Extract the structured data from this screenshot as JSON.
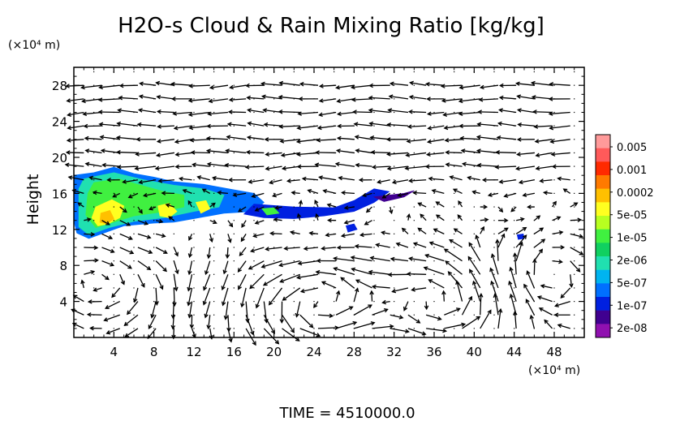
{
  "chart_data": {
    "type": "heatmap",
    "title": "H2O-s Cloud & Rain Mixing Ratio [kg/kg]",
    "ylabel": "Height",
    "y_unit": "(×10⁴ m)",
    "x_unit": "(×10⁴ m)",
    "footer": "TIME = 4510000.0",
    "xlim": [
      0,
      51
    ],
    "ylim": [
      0,
      30
    ],
    "x_ticks": [
      "4",
      "8",
      "12",
      "16",
      "20",
      "24",
      "28",
      "32",
      "36",
      "40",
      "44",
      "48"
    ],
    "y_ticks": [
      "4",
      "8",
      "12",
      "16",
      "20",
      "24",
      "28"
    ],
    "x_tick_values": [
      4,
      8,
      12,
      16,
      20,
      24,
      28,
      32,
      36,
      40,
      44,
      48
    ],
    "y_tick_values": [
      4,
      8,
      12,
      16,
      20,
      24,
      28
    ],
    "colorbar": {
      "labels": [
        "0.005",
        "0.001",
        "0.0002",
        "5e-05",
        "1e-05",
        "2e-06",
        "5e-07",
        "1e-07",
        "2e-08"
      ],
      "colors": [
        "#ff9a9a",
        "#ff5a5a",
        "#ff2a00",
        "#ff7a00",
        "#ffc000",
        "#ffff20",
        "#b8ff20",
        "#40f040",
        "#10d060",
        "#20e0b0",
        "#00b4f0",
        "#0070ff",
        "#0020e0",
        "#400090",
        "#9010b0"
      ]
    },
    "cloud_regions": [
      {
        "level": 3,
        "points": [
          [
            0,
            18.0
          ],
          [
            2,
            18.3
          ],
          [
            4,
            18.9
          ],
          [
            6,
            18.2
          ],
          [
            8,
            17.8
          ],
          [
            10,
            17.3
          ],
          [
            13,
            17.0
          ],
          [
            16,
            16.4
          ],
          [
            18,
            16.0
          ],
          [
            19,
            15.0
          ],
          [
            18,
            14.0
          ],
          [
            15,
            13.8
          ],
          [
            12,
            13.2
          ],
          [
            10,
            12.8
          ],
          [
            8,
            12.7
          ],
          [
            5,
            12.4
          ],
          [
            3,
            11.6
          ],
          [
            1.5,
            11.0
          ],
          [
            0.3,
            11.6
          ],
          [
            0,
            13.0
          ]
        ]
      },
      {
        "level": 2,
        "points": [
          [
            18,
            14.8
          ],
          [
            22,
            14.5
          ],
          [
            26,
            14.4
          ],
          [
            28,
            15.2
          ],
          [
            30,
            16.5
          ],
          [
            31.5,
            16.2
          ],
          [
            30,
            15.0
          ],
          [
            28,
            14.0
          ],
          [
            25,
            13.5
          ],
          [
            22,
            13.2
          ],
          [
            19,
            13.3
          ],
          [
            17,
            13.7
          ]
        ]
      },
      {
        "level": 1,
        "points": [
          [
            30,
            15.6
          ],
          [
            33,
            16.0
          ],
          [
            34,
            16.3
          ],
          [
            33,
            15.6
          ],
          [
            31,
            15.1
          ]
        ]
      },
      {
        "level": 2,
        "points": [
          [
            27.2,
            12.4
          ],
          [
            28,
            12.6
          ],
          [
            28.3,
            12.0
          ],
          [
            27.4,
            11.7
          ]
        ]
      },
      {
        "level": 2,
        "points": [
          [
            44.3,
            11.4
          ],
          [
            44.9,
            11.5
          ],
          [
            45.0,
            11.0
          ],
          [
            44.4,
            10.9
          ]
        ]
      },
      {
        "level": 5,
        "points": [
          [
            1,
            17.6
          ],
          [
            4,
            18.3
          ],
          [
            7,
            17.5
          ],
          [
            10,
            16.9
          ],
          [
            13,
            16.5
          ],
          [
            15,
            15.8
          ],
          [
            14.5,
            14.5
          ],
          [
            12,
            14.0
          ],
          [
            9,
            13.3
          ],
          [
            6,
            12.9
          ],
          [
            3.5,
            12.2
          ],
          [
            1.5,
            11.4
          ],
          [
            0.5,
            12.3
          ],
          [
            0.5,
            16.5
          ]
        ]
      },
      {
        "level": 7,
        "points": [
          [
            2,
            17.2
          ],
          [
            4.5,
            17.6
          ],
          [
            7,
            16.8
          ],
          [
            9,
            16.2
          ],
          [
            11,
            15.8
          ],
          [
            11,
            14.5
          ],
          [
            8.5,
            13.9
          ],
          [
            6,
            13.5
          ],
          [
            4,
            12.8
          ],
          [
            2.2,
            12.2
          ],
          [
            1.2,
            13.6
          ],
          [
            1.4,
            16.0
          ]
        ]
      },
      {
        "level": 9,
        "points": [
          [
            2.2,
            14.5
          ],
          [
            3.8,
            15.3
          ],
          [
            5,
            14.6
          ],
          [
            4.6,
            13.3
          ],
          [
            3.4,
            12.6
          ],
          [
            2.4,
            12.4
          ],
          [
            1.8,
            13.3
          ]
        ]
      },
      {
        "level": 10,
        "points": [
          [
            2.7,
            13.8
          ],
          [
            3.6,
            14.1
          ],
          [
            4.0,
            13.2
          ],
          [
            3.3,
            12.6
          ],
          [
            2.6,
            12.8
          ]
        ]
      },
      {
        "level": 9,
        "points": [
          [
            8.4,
            14.6
          ],
          [
            9.5,
            14.9
          ],
          [
            10.3,
            14.0
          ],
          [
            9.5,
            13.3
          ],
          [
            8.6,
            13.5
          ]
        ]
      },
      {
        "level": 9,
        "points": [
          [
            12.2,
            15.0
          ],
          [
            13.2,
            15.2
          ],
          [
            13.6,
            14.3
          ],
          [
            12.7,
            13.8
          ]
        ]
      },
      {
        "level": 7,
        "points": [
          [
            18.8,
            14.3
          ],
          [
            20,
            14.4
          ],
          [
            20.5,
            13.8
          ],
          [
            19.3,
            13.6
          ]
        ]
      }
    ],
    "flow_field": "wind vectors shown on a regular grid (two overturning cells near x≈24 and x≈38, westward flow aloft near height 20)"
  }
}
